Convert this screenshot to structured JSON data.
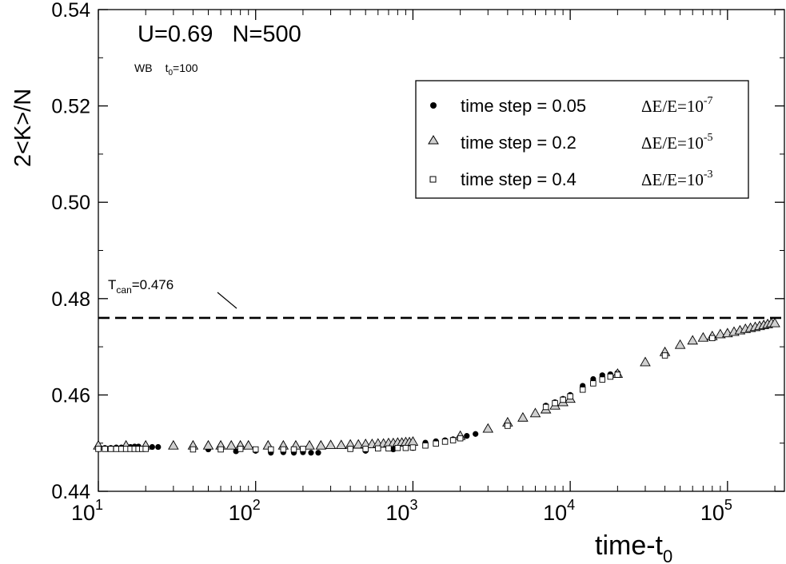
{
  "chart_data": {
    "type": "scatter",
    "title": "U=0.69   N=500",
    "subtitle": {
      "main": "WB",
      "t_label": "t",
      "t_sub": "0",
      "t_value": "=100"
    },
    "xlabel": {
      "main": "time-t",
      "sub": "0"
    },
    "ylabel": "2<K>/N",
    "x_scale": "log",
    "xlim": [
      10,
      230000
    ],
    "ylim": [
      0.44,
      0.54
    ],
    "x_ticks": [
      {
        "value": 10,
        "base": "10",
        "exp": "1"
      },
      {
        "value": 100,
        "base": "10",
        "exp": "2"
      },
      {
        "value": 1000,
        "base": "10",
        "exp": "3"
      },
      {
        "value": 10000,
        "base": "10",
        "exp": "4"
      },
      {
        "value": 100000,
        "base": "10",
        "exp": "5"
      }
    ],
    "y_ticks": [
      {
        "value": 0.44,
        "label": "0.44"
      },
      {
        "value": 0.46,
        "label": "0.46"
      },
      {
        "value": 0.48,
        "label": "0.48"
      },
      {
        "value": 0.5,
        "label": "0.50"
      },
      {
        "value": 0.52,
        "label": "0.52"
      },
      {
        "value": 0.54,
        "label": "0.54"
      }
    ],
    "grid": false,
    "legend_position": "top-right",
    "reference_line": {
      "y": 0.476,
      "style": "dashed",
      "label_main": "T",
      "label_sub": "can",
      "label_value": "=0.476"
    },
    "series": [
      {
        "name": "time step = 0.05",
        "marker": "filled-circle",
        "annotation_main": "ΔE/E=10",
        "annotation_exp": "-7",
        "x": [
          10,
          11,
          12,
          13,
          14,
          15,
          16,
          17,
          18,
          20,
          22,
          24,
          50,
          75,
          100,
          125,
          150,
          175,
          200,
          225,
          250,
          500,
          750,
          1000,
          1200,
          1400,
          1600,
          1800,
          2000,
          2200,
          2500,
          7000,
          8000,
          9000,
          10000,
          12000,
          14000,
          16000,
          18000,
          20000
        ],
        "y": [
          0.4489,
          0.449,
          0.449,
          0.4491,
          0.4491,
          0.4492,
          0.4492,
          0.4493,
          0.4493,
          0.4492,
          0.4492,
          0.4492,
          0.4487,
          0.4483,
          0.4484,
          0.448,
          0.4481,
          0.448,
          0.4481,
          0.448,
          0.448,
          0.4484,
          0.4487,
          0.449,
          0.4501,
          0.4504,
          0.4506,
          0.4508,
          0.4512,
          0.4515,
          0.4519,
          0.4578,
          0.4585,
          0.4592,
          0.46,
          0.4619,
          0.4633,
          0.4641,
          0.4643,
          0.4646
        ]
      },
      {
        "name": "time step = 0.2",
        "marker": "open-triangle",
        "annotation_main": "ΔE/E=10",
        "annotation_exp": "-5",
        "x": [
          10,
          15,
          20,
          30,
          40,
          50,
          60,
          70,
          80,
          90,
          120,
          150,
          180,
          220,
          260,
          300,
          350,
          400,
          450,
          500,
          550,
          600,
          650,
          700,
          750,
          800,
          850,
          900,
          950,
          1000,
          2000,
          3000,
          4000,
          5000,
          6000,
          7000,
          8000,
          9000,
          10000,
          20000,
          30000,
          40000,
          50000,
          60000,
          70000,
          80000,
          90000,
          100000,
          110000,
          120000,
          130000,
          140000,
          150000,
          160000,
          170000,
          180000,
          190000,
          200000
        ],
        "y": [
          0.4495,
          0.4495,
          0.4495,
          0.4495,
          0.4495,
          0.4495,
          0.4495,
          0.4495,
          0.4495,
          0.4495,
          0.4495,
          0.4495,
          0.4495,
          0.4495,
          0.4495,
          0.4496,
          0.4496,
          0.4497,
          0.4497,
          0.4498,
          0.4498,
          0.4499,
          0.4499,
          0.45,
          0.45,
          0.4501,
          0.4501,
          0.4502,
          0.4502,
          0.4503,
          0.4515,
          0.453,
          0.4543,
          0.4553,
          0.4562,
          0.457,
          0.4578,
          0.4585,
          0.4592,
          0.4644,
          0.4668,
          0.4689,
          0.4704,
          0.4713,
          0.4719,
          0.4722,
          0.4726,
          0.4728,
          0.4731,
          0.4734,
          0.4737,
          0.4739,
          0.4741,
          0.4743,
          0.4745,
          0.4747,
          0.4749,
          0.4749
        ]
      },
      {
        "name": "time step = 0.4",
        "marker": "open-square",
        "annotation_main": "ΔE/E=10",
        "annotation_exp": "-3",
        "x": [
          10,
          11,
          12,
          13,
          14,
          15,
          16,
          17,
          18,
          19,
          20,
          40,
          60,
          80,
          100,
          125,
          150,
          175,
          200,
          400,
          500,
          600,
          700,
          800,
          900,
          1000,
          1200,
          1400,
          1600,
          1800,
          2000,
          4000,
          7000,
          8000,
          9000,
          10000,
          12000,
          14000,
          16000,
          18000,
          20000,
          40000,
          80000
        ],
        "y": [
          0.4488,
          0.4488,
          0.4488,
          0.4488,
          0.4488,
          0.4488,
          0.4488,
          0.4488,
          0.4488,
          0.4488,
          0.4488,
          0.4487,
          0.4487,
          0.4488,
          0.4487,
          0.4487,
          0.4487,
          0.4487,
          0.4488,
          0.4488,
          0.4488,
          0.4489,
          0.4489,
          0.449,
          0.449,
          0.4491,
          0.4495,
          0.4499,
          0.4503,
          0.4506,
          0.451,
          0.4536,
          0.4575,
          0.4583,
          0.459,
          0.4597,
          0.4611,
          0.4624,
          0.4632,
          0.4638,
          0.4642,
          0.4682,
          0.4718
        ]
      }
    ]
  }
}
